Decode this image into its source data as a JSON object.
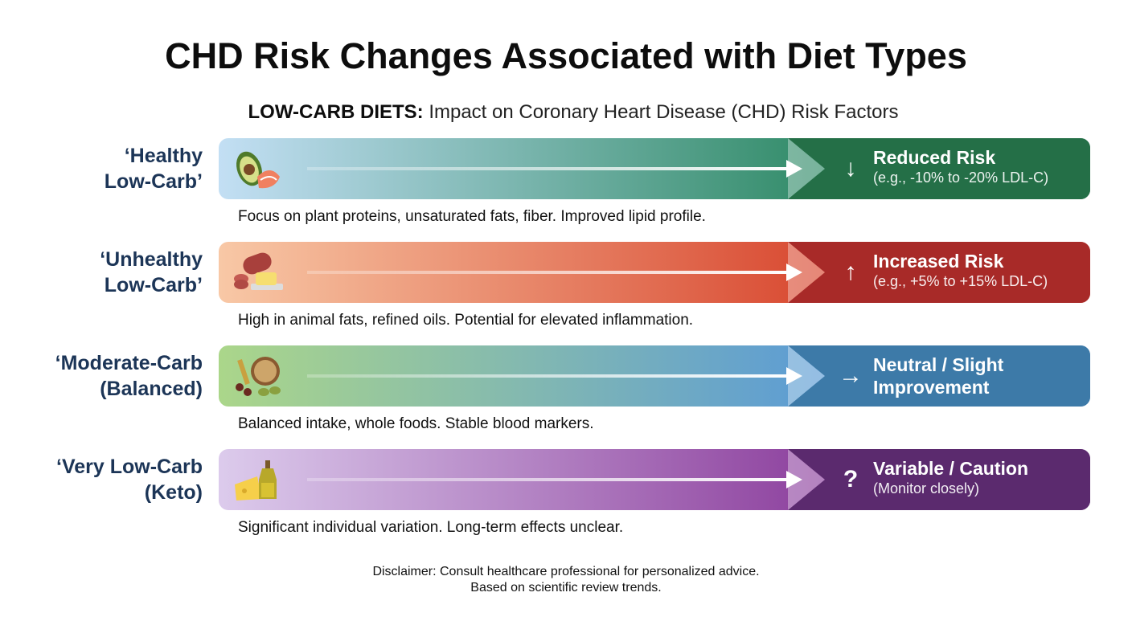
{
  "title": "CHD Risk Changes Associated with Diet Types",
  "subtitle": {
    "bold": "LOW-CARB DIETS:",
    "rest": " Impact on Coronary Heart Disease (CHD) Risk Factors"
  },
  "rows": [
    {
      "label1": "‘Healthy",
      "label2": "Low-Carb’",
      "icon": "avocado-salmon-icon",
      "indicator": "↓",
      "indicator_icon": "arrow-down-icon",
      "result": "Reduced Risk",
      "detail": "(e.g., -10% to -20% LDL-C)",
      "description": "Focus on plant proteins, unsaturated fats, fiber. Improved lipid profile.",
      "colors": {
        "start": "#c3dff4",
        "end": "#2f8a66",
        "dark": "#246f47"
      }
    },
    {
      "label1": "‘Unhealthy",
      "label2": "Low-Carb’",
      "icon": "sausage-butter-icon",
      "indicator": "↑",
      "indicator_icon": "arrow-up-icon",
      "result": "Increased Risk",
      "detail": "(e.g., +5% to +15% LDL-C)",
      "description": "High in animal fats, refined oils. Potential for elevated inflammation.",
      "colors": {
        "start": "#f8c8a6",
        "end": "#d8472f",
        "dark": "#a82a28"
      }
    },
    {
      "label1": "‘Moderate-Carb",
      "label2": "(Balanced)",
      "icon": "grains-legumes-icon",
      "indicator": "→",
      "indicator_icon": "arrow-right-icon",
      "result": "Neutral / Slight",
      "detail": "Improvement",
      "description": "Balanced intake, whole foods. Stable blood markers.",
      "colors": {
        "start": "#abd68a",
        "end": "#5b9bd6",
        "dark": "#3d7aa8"
      }
    },
    {
      "label1": "‘Very Low-Carb",
      "label2": "(Keto)",
      "icon": "cheese-oil-icon",
      "indicator": "?",
      "indicator_icon": "question-icon",
      "result": "Variable / Caution",
      "detail": "(Monitor closely)",
      "description": "Significant individual variation. Long-term effects unclear.",
      "colors": {
        "start": "#dccbec",
        "end": "#8c3f9d",
        "dark": "#5b2a6e"
      }
    }
  ],
  "disclaimer": {
    "line1": "Disclaimer: Consult healthcare professional for personalized advice.",
    "line2": "Based on scientific review trends."
  }
}
